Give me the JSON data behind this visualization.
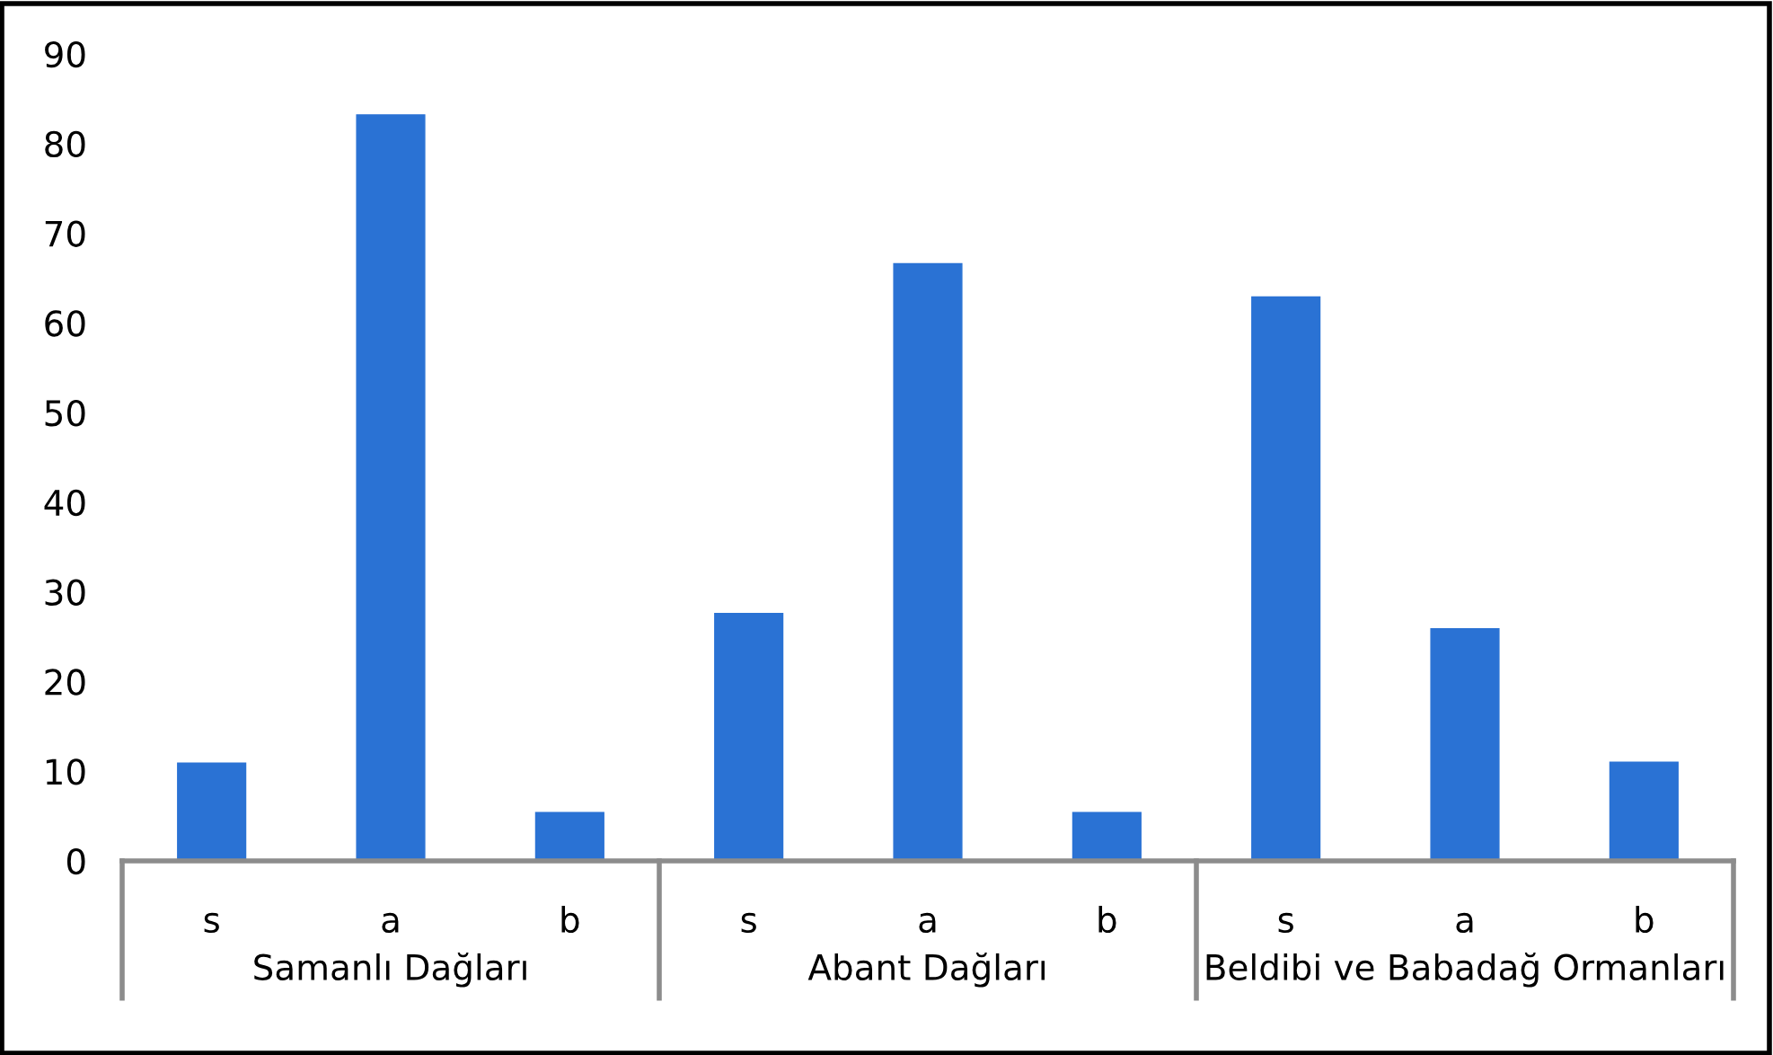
{
  "chart_data": {
    "type": "bar",
    "categories": [
      "s",
      "a",
      "b",
      "s",
      "a",
      "b",
      "s",
      "a",
      "b"
    ],
    "values": [
      10.9,
      83.2,
      5.4,
      27.6,
      66.6,
      5.4,
      62.9,
      25.9,
      11.0
    ],
    "color": "#2a72d4",
    "ylim": [
      0,
      90
    ],
    "yticks": [
      0,
      10,
      20,
      30,
      40,
      50,
      60,
      70,
      80,
      90
    ],
    "annotations": [
      "Samanlı Dağları",
      "Abant Dağları",
      "Beldibi ve Babadağ Ormanları"
    ],
    "grid": false,
    "legend": false
  }
}
